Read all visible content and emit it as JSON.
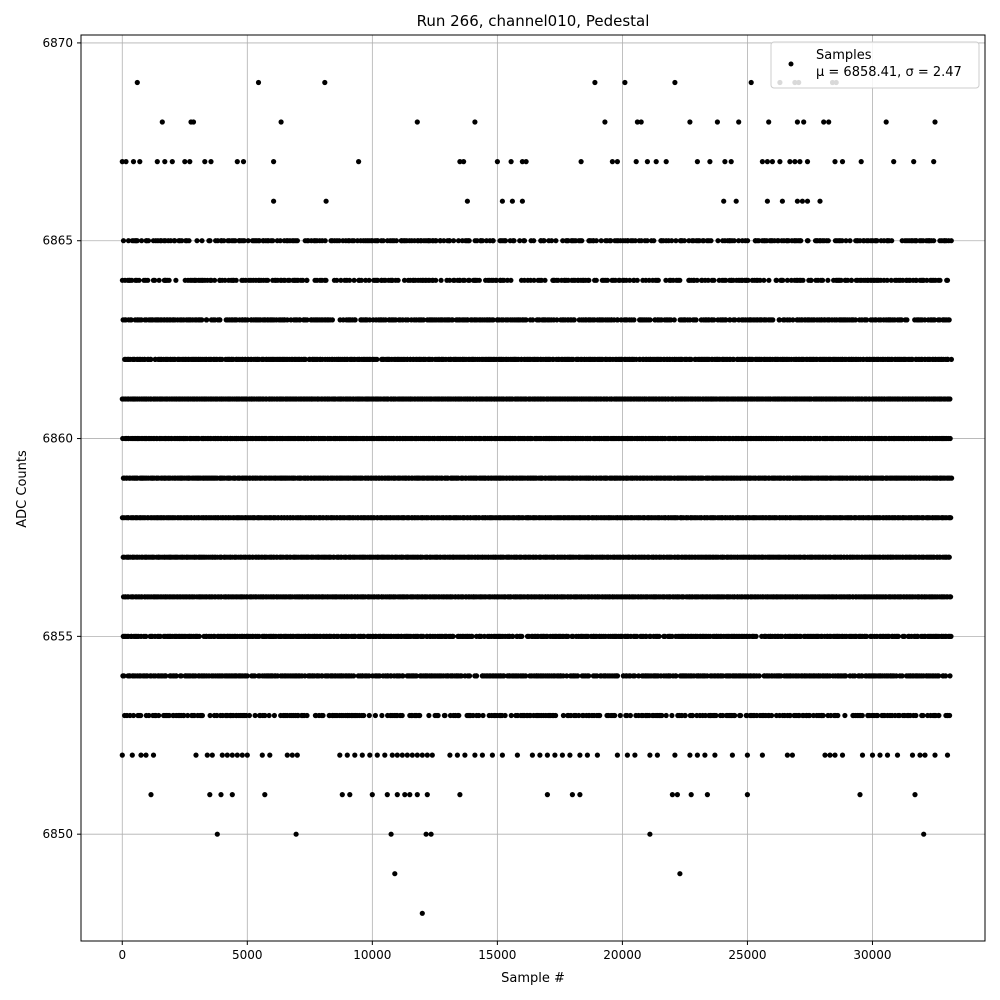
{
  "chart_data": {
    "type": "scatter",
    "title": "Run 266, channel010, Pedestal",
    "xlabel": "Sample #",
    "ylabel": "ADC Counts",
    "xlim": [
      -1650,
      34500
    ],
    "ylim": [
      6847.3,
      6870.2
    ],
    "xticks": [
      0,
      5000,
      10000,
      15000,
      20000,
      25000,
      30000
    ],
    "yticks": [
      6850,
      6855,
      6860,
      6865,
      6870
    ],
    "grid": true,
    "legend": {
      "placement": "top-right",
      "series_label": "Samples",
      "stats_label": "μ = 6858.41, σ = 2.47"
    },
    "series": [
      {
        "name": "Samples",
        "color": "#000000",
        "marker": "circle",
        "n_samples": 33170,
        "dense_levels": [
          6853,
          6854,
          6855,
          6856,
          6857,
          6858,
          6859,
          6860,
          6861,
          6862,
          6863,
          6864,
          6865
        ],
        "sparse_points": [
          [
            600,
            6869
          ],
          [
            5450,
            6869
          ],
          [
            8100,
            6869
          ],
          [
            18900,
            6869
          ],
          [
            20100,
            6869
          ],
          [
            22100,
            6869
          ],
          [
            25150,
            6869
          ],
          [
            26300,
            6869
          ],
          [
            26900,
            6869
          ],
          [
            27050,
            6869
          ],
          [
            28400,
            6869
          ],
          [
            28550,
            6869
          ],
          [
            1600,
            6868
          ],
          [
            2750,
            6868
          ],
          [
            2850,
            6868
          ],
          [
            6350,
            6868
          ],
          [
            11800,
            6868
          ],
          [
            14100,
            6868
          ],
          [
            19300,
            6868
          ],
          [
            20600,
            6868
          ],
          [
            20750,
            6868
          ],
          [
            22700,
            6868
          ],
          [
            23800,
            6868
          ],
          [
            24650,
            6868
          ],
          [
            25850,
            6868
          ],
          [
            27000,
            6868
          ],
          [
            27250,
            6868
          ],
          [
            28050,
            6868
          ],
          [
            28250,
            6868
          ],
          [
            30550,
            6868
          ],
          [
            32500,
            6868
          ],
          [
            0,
            6867
          ],
          [
            150,
            6867
          ],
          [
            450,
            6867
          ],
          [
            700,
            6867
          ],
          [
            1400,
            6867
          ],
          [
            1700,
            6867
          ],
          [
            2000,
            6867
          ],
          [
            2500,
            6867
          ],
          [
            2700,
            6867
          ],
          [
            3300,
            6867
          ],
          [
            3550,
            6867
          ],
          [
            4600,
            6867
          ],
          [
            4850,
            6867
          ],
          [
            6050,
            6867
          ],
          [
            9450,
            6867
          ],
          [
            13500,
            6867
          ],
          [
            13650,
            6867
          ],
          [
            15000,
            6867
          ],
          [
            15550,
            6867
          ],
          [
            16000,
            6867
          ],
          [
            16150,
            6867
          ],
          [
            18350,
            6867
          ],
          [
            19600,
            6867
          ],
          [
            19800,
            6867
          ],
          [
            20550,
            6867
          ],
          [
            21000,
            6867
          ],
          [
            21350,
            6867
          ],
          [
            21750,
            6867
          ],
          [
            23000,
            6867
          ],
          [
            23500,
            6867
          ],
          [
            24100,
            6867
          ],
          [
            24350,
            6867
          ],
          [
            25600,
            6867
          ],
          [
            25800,
            6867
          ],
          [
            26000,
            6867
          ],
          [
            26300,
            6867
          ],
          [
            26700,
            6867
          ],
          [
            26900,
            6867
          ],
          [
            27100,
            6867
          ],
          [
            27400,
            6867
          ],
          [
            28500,
            6867
          ],
          [
            28800,
            6867
          ],
          [
            29550,
            6867
          ],
          [
            30850,
            6867
          ],
          [
            31650,
            6867
          ],
          [
            32450,
            6867
          ],
          [
            6050,
            6866
          ],
          [
            8150,
            6866
          ],
          [
            13800,
            6866
          ],
          [
            15200,
            6866
          ],
          [
            15600,
            6866
          ],
          [
            16000,
            6866
          ],
          [
            24050,
            6866
          ],
          [
            24550,
            6866
          ],
          [
            25800,
            6866
          ],
          [
            26400,
            6866
          ],
          [
            27000,
            6866
          ],
          [
            27200,
            6866
          ],
          [
            27400,
            6866
          ],
          [
            27900,
            6866
          ],
          [
            0,
            6852
          ],
          [
            400,
            6852
          ],
          [
            750,
            6852
          ],
          [
            950,
            6852
          ],
          [
            1250,
            6852
          ],
          [
            2950,
            6852
          ],
          [
            3400,
            6852
          ],
          [
            3600,
            6852
          ],
          [
            4000,
            6852
          ],
          [
            4200,
            6852
          ],
          [
            4400,
            6852
          ],
          [
            4600,
            6852
          ],
          [
            4800,
            6852
          ],
          [
            5000,
            6852
          ],
          [
            5600,
            6852
          ],
          [
            5900,
            6852
          ],
          [
            6600,
            6852
          ],
          [
            6800,
            6852
          ],
          [
            7000,
            6852
          ],
          [
            8700,
            6852
          ],
          [
            9000,
            6852
          ],
          [
            9300,
            6852
          ],
          [
            9600,
            6852
          ],
          [
            9900,
            6852
          ],
          [
            10200,
            6852
          ],
          [
            10500,
            6852
          ],
          [
            10800,
            6852
          ],
          [
            11000,
            6852
          ],
          [
            11200,
            6852
          ],
          [
            11400,
            6852
          ],
          [
            11600,
            6852
          ],
          [
            11800,
            6852
          ],
          [
            12000,
            6852
          ],
          [
            12200,
            6852
          ],
          [
            12400,
            6852
          ],
          [
            13100,
            6852
          ],
          [
            13400,
            6852
          ],
          [
            13700,
            6852
          ],
          [
            14100,
            6852
          ],
          [
            14400,
            6852
          ],
          [
            14800,
            6852
          ],
          [
            15200,
            6852
          ],
          [
            15800,
            6852
          ],
          [
            16400,
            6852
          ],
          [
            16700,
            6852
          ],
          [
            17000,
            6852
          ],
          [
            17300,
            6852
          ],
          [
            17600,
            6852
          ],
          [
            17900,
            6852
          ],
          [
            18300,
            6852
          ],
          [
            18600,
            6852
          ],
          [
            19000,
            6852
          ],
          [
            19800,
            6852
          ],
          [
            20200,
            6852
          ],
          [
            20500,
            6852
          ],
          [
            21100,
            6852
          ],
          [
            21400,
            6852
          ],
          [
            22100,
            6852
          ],
          [
            22700,
            6852
          ],
          [
            23000,
            6852
          ],
          [
            23300,
            6852
          ],
          [
            23700,
            6852
          ],
          [
            24400,
            6852
          ],
          [
            25000,
            6852
          ],
          [
            25600,
            6852
          ],
          [
            26600,
            6852
          ],
          [
            26800,
            6852
          ],
          [
            28100,
            6852
          ],
          [
            28300,
            6852
          ],
          [
            28500,
            6852
          ],
          [
            28800,
            6852
          ],
          [
            29600,
            6852
          ],
          [
            30000,
            6852
          ],
          [
            30300,
            6852
          ],
          [
            30600,
            6852
          ],
          [
            31000,
            6852
          ],
          [
            31600,
            6852
          ],
          [
            31900,
            6852
          ],
          [
            32100,
            6852
          ],
          [
            32500,
            6852
          ],
          [
            33000,
            6852
          ],
          [
            1150,
            6851
          ],
          [
            3500,
            6851
          ],
          [
            3950,
            6851
          ],
          [
            4400,
            6851
          ],
          [
            5700,
            6851
          ],
          [
            8800,
            6851
          ],
          [
            9100,
            6851
          ],
          [
            10000,
            6851
          ],
          [
            10600,
            6851
          ],
          [
            11000,
            6851
          ],
          [
            11300,
            6851
          ],
          [
            11500,
            6851
          ],
          [
            11800,
            6851
          ],
          [
            12200,
            6851
          ],
          [
            13500,
            6851
          ],
          [
            17000,
            6851
          ],
          [
            18000,
            6851
          ],
          [
            18300,
            6851
          ],
          [
            22000,
            6851
          ],
          [
            22200,
            6851
          ],
          [
            22750,
            6851
          ],
          [
            23400,
            6851
          ],
          [
            25000,
            6851
          ],
          [
            29500,
            6851
          ],
          [
            31700,
            6851
          ],
          [
            3800,
            6850
          ],
          [
            6950,
            6850
          ],
          [
            10750,
            6850
          ],
          [
            12150,
            6850
          ],
          [
            12350,
            6850
          ],
          [
            21100,
            6850
          ],
          [
            32050,
            6850
          ],
          [
            10900,
            6849
          ],
          [
            22300,
            6849
          ],
          [
            12000,
            6848
          ]
        ]
      }
    ]
  }
}
